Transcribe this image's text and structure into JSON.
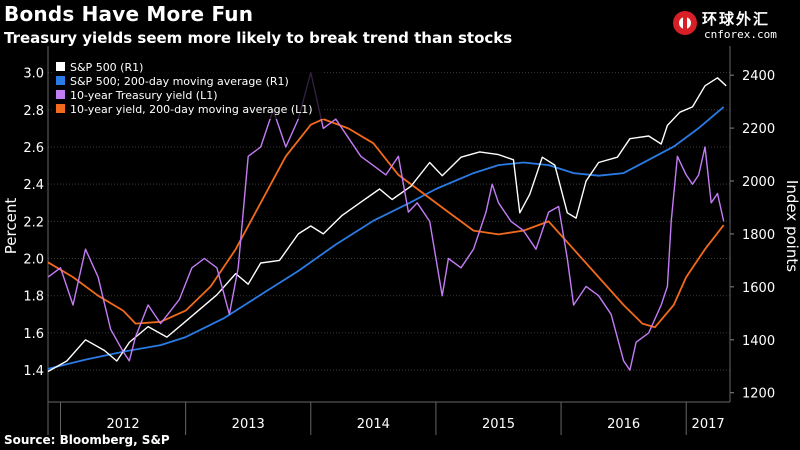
{
  "title": "Bonds Have More Fun",
  "subtitle": "Treasury yields seem more likely to break trend than stocks",
  "source": "Source: Bloomberg, S&P",
  "logo": {
    "cn": "环球外汇",
    "en": "cnforex.com",
    "icon": "cnforex-logo-icon"
  },
  "chart_data": {
    "type": "line",
    "x_years": [
      "2012",
      "2013",
      "2014",
      "2015",
      "2016",
      "2017"
    ],
    "x_range": [
      2011.9,
      2017.35
    ],
    "y_left": {
      "label": "Percent",
      "ticks": [
        "1.4",
        "1.6",
        "1.8",
        "2.0",
        "2.2",
        "2.4",
        "2.6",
        "2.8",
        "3.0"
      ],
      "range": [
        1.25,
        3.1
      ]
    },
    "y_right": {
      "label": "Index points",
      "ticks": [
        "1200",
        "1400",
        "1600",
        "1800",
        "2000",
        "2200",
        "2400"
      ],
      "range": [
        1180,
        2480
      ]
    },
    "legend": {
      "position": "top-left"
    },
    "colors": {
      "sp500": "#ffffff",
      "sp500_ma": "#2a7be4",
      "yield": "#c47cf5",
      "yield_ma": "#f26a1b"
    },
    "series": [
      {
        "name": "S&P 500 (R1)",
        "axis": "right",
        "points": [
          [
            2011.9,
            1280
          ],
          [
            2012.05,
            1320
          ],
          [
            2012.2,
            1400
          ],
          [
            2012.35,
            1360
          ],
          [
            2012.45,
            1320
          ],
          [
            2012.55,
            1390
          ],
          [
            2012.7,
            1450
          ],
          [
            2012.85,
            1410
          ],
          [
            2013.0,
            1470
          ],
          [
            2013.1,
            1510
          ],
          [
            2013.25,
            1570
          ],
          [
            2013.4,
            1650
          ],
          [
            2013.5,
            1610
          ],
          [
            2013.6,
            1690
          ],
          [
            2013.75,
            1700
          ],
          [
            2013.9,
            1800
          ],
          [
            2014.0,
            1830
          ],
          [
            2014.1,
            1800
          ],
          [
            2014.25,
            1870
          ],
          [
            2014.4,
            1920
          ],
          [
            2014.55,
            1970
          ],
          [
            2014.65,
            1930
          ],
          [
            2014.8,
            1980
          ],
          [
            2014.95,
            2070
          ],
          [
            2015.05,
            2020
          ],
          [
            2015.2,
            2090
          ],
          [
            2015.35,
            2110
          ],
          [
            2015.5,
            2100
          ],
          [
            2015.62,
            2080
          ],
          [
            2015.67,
            1880
          ],
          [
            2015.75,
            1950
          ],
          [
            2015.85,
            2090
          ],
          [
            2015.95,
            2060
          ],
          [
            2016.05,
            1880
          ],
          [
            2016.12,
            1860
          ],
          [
            2016.2,
            2000
          ],
          [
            2016.3,
            2070
          ],
          [
            2016.45,
            2090
          ],
          [
            2016.55,
            2160
          ],
          [
            2016.7,
            2170
          ],
          [
            2016.8,
            2140
          ],
          [
            2016.85,
            2210
          ],
          [
            2016.95,
            2260
          ],
          [
            2017.05,
            2280
          ],
          [
            2017.15,
            2360
          ],
          [
            2017.25,
            2390
          ],
          [
            2017.32,
            2360
          ]
        ]
      },
      {
        "name": "S&P 500; 200-day moving average (R1)",
        "axis": "right",
        "points": [
          [
            2011.9,
            1290
          ],
          [
            2012.2,
            1325
          ],
          [
            2012.5,
            1355
          ],
          [
            2012.8,
            1380
          ],
          [
            2013.0,
            1410
          ],
          [
            2013.3,
            1480
          ],
          [
            2013.6,
            1570
          ],
          [
            2013.9,
            1660
          ],
          [
            2014.2,
            1760
          ],
          [
            2014.5,
            1850
          ],
          [
            2014.8,
            1920
          ],
          [
            2015.0,
            1970
          ],
          [
            2015.3,
            2030
          ],
          [
            2015.5,
            2060
          ],
          [
            2015.7,
            2070
          ],
          [
            2015.9,
            2060
          ],
          [
            2016.1,
            2030
          ],
          [
            2016.3,
            2020
          ],
          [
            2016.5,
            2030
          ],
          [
            2016.7,
            2080
          ],
          [
            2016.9,
            2130
          ],
          [
            2017.1,
            2200
          ],
          [
            2017.3,
            2280
          ]
        ]
      },
      {
        "name": "10-year Treasury yield (L1)",
        "axis": "left",
        "points": [
          [
            2011.9,
            1.9
          ],
          [
            2012.0,
            1.95
          ],
          [
            2012.1,
            1.75
          ],
          [
            2012.2,
            2.05
          ],
          [
            2012.3,
            1.9
          ],
          [
            2012.4,
            1.62
          ],
          [
            2012.5,
            1.5
          ],
          [
            2012.55,
            1.45
          ],
          [
            2012.6,
            1.58
          ],
          [
            2012.7,
            1.75
          ],
          [
            2012.8,
            1.65
          ],
          [
            2012.95,
            1.78
          ],
          [
            2013.05,
            1.95
          ],
          [
            2013.15,
            2.0
          ],
          [
            2013.25,
            1.95
          ],
          [
            2013.35,
            1.7
          ],
          [
            2013.42,
            1.95
          ],
          [
            2013.5,
            2.55
          ],
          [
            2013.6,
            2.6
          ],
          [
            2013.7,
            2.8
          ],
          [
            2013.8,
            2.6
          ],
          [
            2013.9,
            2.75
          ],
          [
            2014.0,
            3.0
          ],
          [
            2014.1,
            2.7
          ],
          [
            2014.2,
            2.75
          ],
          [
            2014.3,
            2.65
          ],
          [
            2014.4,
            2.55
          ],
          [
            2014.5,
            2.5
          ],
          [
            2014.6,
            2.45
          ],
          [
            2014.7,
            2.55
          ],
          [
            2014.78,
            2.25
          ],
          [
            2014.85,
            2.3
          ],
          [
            2014.95,
            2.2
          ],
          [
            2015.05,
            1.8
          ],
          [
            2015.1,
            2.0
          ],
          [
            2015.2,
            1.95
          ],
          [
            2015.3,
            2.05
          ],
          [
            2015.4,
            2.25
          ],
          [
            2015.45,
            2.4
          ],
          [
            2015.5,
            2.3
          ],
          [
            2015.6,
            2.2
          ],
          [
            2015.7,
            2.15
          ],
          [
            2015.8,
            2.05
          ],
          [
            2015.9,
            2.25
          ],
          [
            2015.98,
            2.28
          ],
          [
            2016.05,
            2.0
          ],
          [
            2016.1,
            1.75
          ],
          [
            2016.2,
            1.85
          ],
          [
            2016.3,
            1.8
          ],
          [
            2016.4,
            1.7
          ],
          [
            2016.5,
            1.45
          ],
          [
            2016.55,
            1.4
          ],
          [
            2016.6,
            1.55
          ],
          [
            2016.7,
            1.6
          ],
          [
            2016.8,
            1.75
          ],
          [
            2016.85,
            1.85
          ],
          [
            2016.88,
            2.2
          ],
          [
            2016.93,
            2.55
          ],
          [
            2017.0,
            2.45
          ],
          [
            2017.05,
            2.4
          ],
          [
            2017.1,
            2.45
          ],
          [
            2017.15,
            2.6
          ],
          [
            2017.2,
            2.3
          ],
          [
            2017.25,
            2.35
          ],
          [
            2017.3,
            2.2
          ]
        ]
      },
      {
        "name": "10-year yield, 200-day moving average (L1)",
        "axis": "left",
        "points": [
          [
            2011.9,
            1.98
          ],
          [
            2012.1,
            1.9
          ],
          [
            2012.3,
            1.8
          ],
          [
            2012.5,
            1.72
          ],
          [
            2012.6,
            1.65
          ],
          [
            2012.8,
            1.66
          ],
          [
            2013.0,
            1.72
          ],
          [
            2013.2,
            1.85
          ],
          [
            2013.4,
            2.05
          ],
          [
            2013.6,
            2.3
          ],
          [
            2013.8,
            2.55
          ],
          [
            2014.0,
            2.72
          ],
          [
            2014.1,
            2.75
          ],
          [
            2014.3,
            2.7
          ],
          [
            2014.5,
            2.62
          ],
          [
            2014.7,
            2.45
          ],
          [
            2014.9,
            2.35
          ],
          [
            2015.1,
            2.25
          ],
          [
            2015.3,
            2.15
          ],
          [
            2015.5,
            2.13
          ],
          [
            2015.7,
            2.15
          ],
          [
            2015.9,
            2.2
          ],
          [
            2016.1,
            2.05
          ],
          [
            2016.3,
            1.9
          ],
          [
            2016.5,
            1.75
          ],
          [
            2016.65,
            1.65
          ],
          [
            2016.75,
            1.63
          ],
          [
            2016.9,
            1.75
          ],
          [
            2017.0,
            1.9
          ],
          [
            2017.15,
            2.05
          ],
          [
            2017.3,
            2.18
          ]
        ]
      }
    ]
  }
}
